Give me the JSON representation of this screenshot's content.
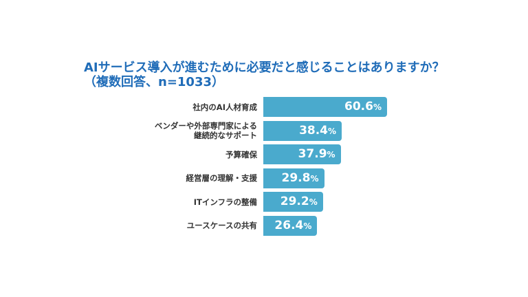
{
  "chart_data": {
    "type": "bar",
    "orientation": "horizontal",
    "title": "AIサービス導入が進むために必要だと感じることはありますか？",
    "subtitle": "（複数回答、n=1033）",
    "categories": [
      "社内のAI人材育成",
      "ベンダーや外部専門家による\n継続的なサポート",
      "予算確保",
      "経営層の理解・支援",
      "ITインフラの整備",
      "ユースケースの共有"
    ],
    "values": [
      60.6,
      38.4,
      37.9,
      29.8,
      29.2,
      26.4
    ],
    "data_labels": [
      "60.6",
      "38.4",
      "37.9",
      "29.8",
      "29.2",
      "26.4"
    ],
    "unit": "%",
    "bar_color": "#4aaacd",
    "title_color": "#1f6cb8",
    "grid": false
  }
}
